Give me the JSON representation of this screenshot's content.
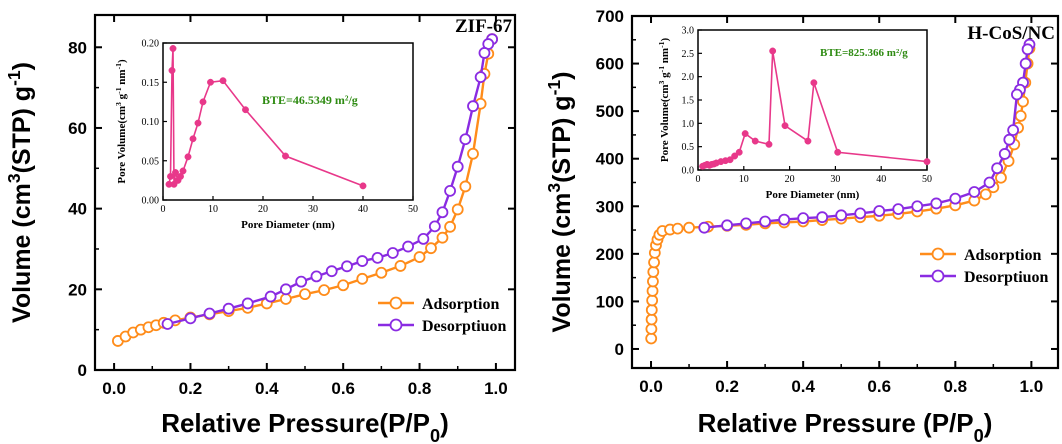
{
  "chart_data": [
    {
      "type": "line",
      "panel_label": "ZIF-67",
      "xlabel": "Relative Pressure(P/P0)",
      "ylabel": "Volume (cm3(STP) g-1)",
      "xlim": [
        -0.05,
        1.05
      ],
      "ylim": [
        0,
        88
      ],
      "xticks": [
        "0.0",
        "0.2",
        "0.4",
        "0.6",
        "0.8",
        "1.0"
      ],
      "xtick_values": [
        0.0,
        0.2,
        0.4,
        0.6,
        0.8,
        1.0
      ],
      "yticks": [
        "0",
        "20",
        "40",
        "60",
        "80"
      ],
      "ytick_values": [
        0,
        20,
        40,
        60,
        80
      ],
      "legend_position": "lower-right",
      "series": [
        {
          "name": "Adsorption",
          "color": "#ff8c1a",
          "marker": "open-circle",
          "x": [
            0.01,
            0.03,
            0.05,
            0.07,
            0.09,
            0.11,
            0.13,
            0.16,
            0.2,
            0.25,
            0.3,
            0.35,
            0.4,
            0.45,
            0.5,
            0.55,
            0.6,
            0.65,
            0.7,
            0.75,
            0.8,
            0.83,
            0.86,
            0.88,
            0.9,
            0.92,
            0.94,
            0.96,
            0.97,
            0.98,
            0.99
          ],
          "y": [
            7.2,
            8.3,
            9.3,
            10.0,
            10.6,
            11.1,
            11.7,
            12.3,
            13.0,
            13.8,
            14.6,
            15.4,
            16.5,
            17.6,
            18.8,
            19.8,
            21.0,
            22.6,
            24.1,
            25.8,
            28.0,
            30.2,
            32.8,
            35.5,
            39.8,
            45.5,
            53.6,
            66.0,
            73.4,
            78.4,
            82.0
          ]
        },
        {
          "name": "Desorptiuon",
          "color": "#8a2be2",
          "marker": "open-circle",
          "x": [
            0.99,
            0.98,
            0.97,
            0.96,
            0.94,
            0.92,
            0.9,
            0.88,
            0.86,
            0.84,
            0.81,
            0.77,
            0.73,
            0.69,
            0.65,
            0.61,
            0.57,
            0.53,
            0.49,
            0.45,
            0.41,
            0.35,
            0.3,
            0.25,
            0.2,
            0.14
          ],
          "y": [
            82.0,
            80.8,
            78.6,
            72.6,
            65.4,
            57.2,
            50.4,
            44.4,
            39.1,
            35.6,
            32.5,
            30.6,
            29.0,
            27.8,
            27.0,
            25.7,
            24.5,
            23.2,
            21.9,
            20.0,
            18.2,
            16.5,
            15.2,
            14.0,
            12.8,
            11.4
          ]
        }
      ],
      "inset": {
        "type": "line",
        "xlabel": "Pore Diameter (nm)",
        "ylabel": "Pore Volume(cm3 g-1 nm-1)",
        "xlim": [
          0,
          50
        ],
        "ylim": [
          0,
          0.2
        ],
        "xticks": [
          "0",
          "10",
          "20",
          "30",
          "40",
          "50"
        ],
        "xtick_values": [
          0,
          10,
          20,
          30,
          40,
          50
        ],
        "yticks": [
          "0.00",
          "0.05",
          "0.10",
          "0.15",
          "0.20"
        ],
        "ytick_values": [
          0,
          0.05,
          0.1,
          0.15,
          0.2
        ],
        "annotation": "BTE=46.5349 m²/g",
        "annotation_color": "#2e8b12",
        "color": "#e8388a",
        "x": [
          1.2,
          1.5,
          1.8,
          2.0,
          2.2,
          2.5,
          3.0,
          3.5,
          4.0,
          5.0,
          6.0,
          7.0,
          8.0,
          9.5,
          12.0,
          16.5,
          24.5,
          40.0
        ],
        "y": [
          0.02,
          0.03,
          0.165,
          0.193,
          0.02,
          0.035,
          0.025,
          0.03,
          0.037,
          0.055,
          0.078,
          0.098,
          0.125,
          0.15,
          0.152,
          0.115,
          0.056,
          0.018
        ]
      }
    },
    {
      "type": "line",
      "panel_label": "H-CoS/NC",
      "xlabel": "Relative Pressure (P/P0)",
      "ylabel": "Volume (cm3(STP) g-1)",
      "xlim": [
        -0.05,
        1.07
      ],
      "ylim": [
        -40,
        700
      ],
      "xticks": [
        "0.0",
        "0.2",
        "0.4",
        "0.6",
        "0.8",
        "1.0"
      ],
      "xtick_values": [
        0.0,
        0.2,
        0.4,
        0.6,
        0.8,
        1.0
      ],
      "yticks": [
        "0",
        "100",
        "200",
        "300",
        "400",
        "500",
        "600",
        "700"
      ],
      "ytick_values": [
        0,
        100,
        200,
        300,
        400,
        500,
        600,
        700
      ],
      "legend_position": "center-right",
      "series": [
        {
          "name": "Adsorption",
          "color": "#ff8c1a",
          "marker": "open-circle",
          "x": [
            0.0005,
            0.001,
            0.0015,
            0.002,
            0.003,
            0.004,
            0.005,
            0.006,
            0.008,
            0.01,
            0.013,
            0.017,
            0.022,
            0.03,
            0.05,
            0.07,
            0.1,
            0.15,
            0.2,
            0.25,
            0.3,
            0.35,
            0.4,
            0.45,
            0.5,
            0.55,
            0.6,
            0.65,
            0.7,
            0.75,
            0.8,
            0.85,
            0.88,
            0.9,
            0.92,
            0.94,
            0.955,
            0.965,
            0.972,
            0.978,
            0.984,
            0.99,
            0.995
          ],
          "y": [
            22,
            42,
            62,
            82,
            102,
            122,
            142,
            162,
            182,
            202,
            218,
            230,
            240,
            248,
            251,
            253,
            255,
            257,
            259,
            261,
            264,
            266,
            268,
            271,
            274,
            277,
            280,
            284,
            289,
            295,
            302,
            312,
            325,
            340,
            360,
            395,
            430,
            465,
            490,
            520,
            560,
            600,
            632
          ]
        },
        {
          "name": "Desorptiuon",
          "color": "#8a2be2",
          "marker": "open-circle",
          "x": [
            0.995,
            0.99,
            0.985,
            0.978,
            0.97,
            0.962,
            0.952,
            0.942,
            0.93,
            0.91,
            0.89,
            0.85,
            0.8,
            0.75,
            0.7,
            0.65,
            0.6,
            0.55,
            0.5,
            0.45,
            0.4,
            0.35,
            0.3,
            0.25,
            0.2,
            0.14
          ],
          "y": [
            640,
            630,
            600,
            560,
            545,
            535,
            460,
            440,
            410,
            380,
            350,
            330,
            316,
            306,
            300,
            294,
            290,
            285,
            281,
            277,
            275,
            272,
            268,
            264,
            260,
            255
          ]
        }
      ],
      "inset": {
        "type": "line",
        "xlabel": "Pore Diameter (nm)",
        "ylabel": "Pore Volume(cm3 g-1 nm-1)",
        "xlim": [
          0,
          50
        ],
        "ylim": [
          0,
          3.0
        ],
        "xticks": [
          "0",
          "10",
          "20",
          "30",
          "40",
          "50"
        ],
        "xtick_values": [
          0,
          10,
          20,
          30,
          40,
          50
        ],
        "yticks": [
          "0.0",
          "0.5",
          "1.0",
          "1.5",
          "2.0",
          "2.5",
          "3.0"
        ],
        "ytick_values": [
          0,
          0.5,
          1.0,
          1.5,
          2.0,
          2.5,
          3.0
        ],
        "annotation": "BTE=825.366 m²/g",
        "annotation_color": "#2e8b12",
        "color": "#e8388a",
        "x": [
          1.0,
          1.5,
          2.0,
          2.5,
          3.0,
          3.5,
          4.0,
          5.0,
          6.0,
          7.0,
          8.0,
          9.0,
          10.3,
          12.5,
          15.5,
          16.3,
          19.0,
          24.0,
          25.3,
          30.5,
          50.0
        ],
        "y": [
          0.08,
          0.1,
          0.12,
          0.1,
          0.12,
          0.13,
          0.15,
          0.18,
          0.2,
          0.22,
          0.3,
          0.38,
          0.78,
          0.62,
          0.55,
          2.55,
          0.95,
          0.62,
          1.87,
          0.38,
          0.18
        ]
      }
    }
  ]
}
